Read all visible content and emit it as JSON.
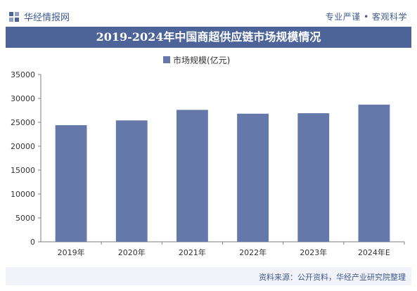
{
  "header": {
    "brand": "华经情报网",
    "tagline": "专业严谨 • 客观科学"
  },
  "title": "2019-2024年中国商超供应链市场规模情况",
  "source": "资料来源：公开资料，华经产业研究院整理",
  "colors": {
    "bar": "#6479a9",
    "title_bg": "#4d6498",
    "text": "#3f5a90"
  },
  "chart_data": {
    "type": "bar",
    "categories": [
      "2019年",
      "2020年",
      "2021年",
      "2022年",
      "2023年",
      "2024年E"
    ],
    "series": [
      {
        "name": "市场规模(亿元)",
        "values": [
          24400,
          25400,
          27600,
          26800,
          26900,
          28700
        ]
      }
    ],
    "ylim": [
      0,
      35000
    ],
    "yticks": [
      0,
      5000,
      10000,
      15000,
      20000,
      25000,
      30000,
      35000
    ],
    "legend": "top-left",
    "grid": false
  }
}
